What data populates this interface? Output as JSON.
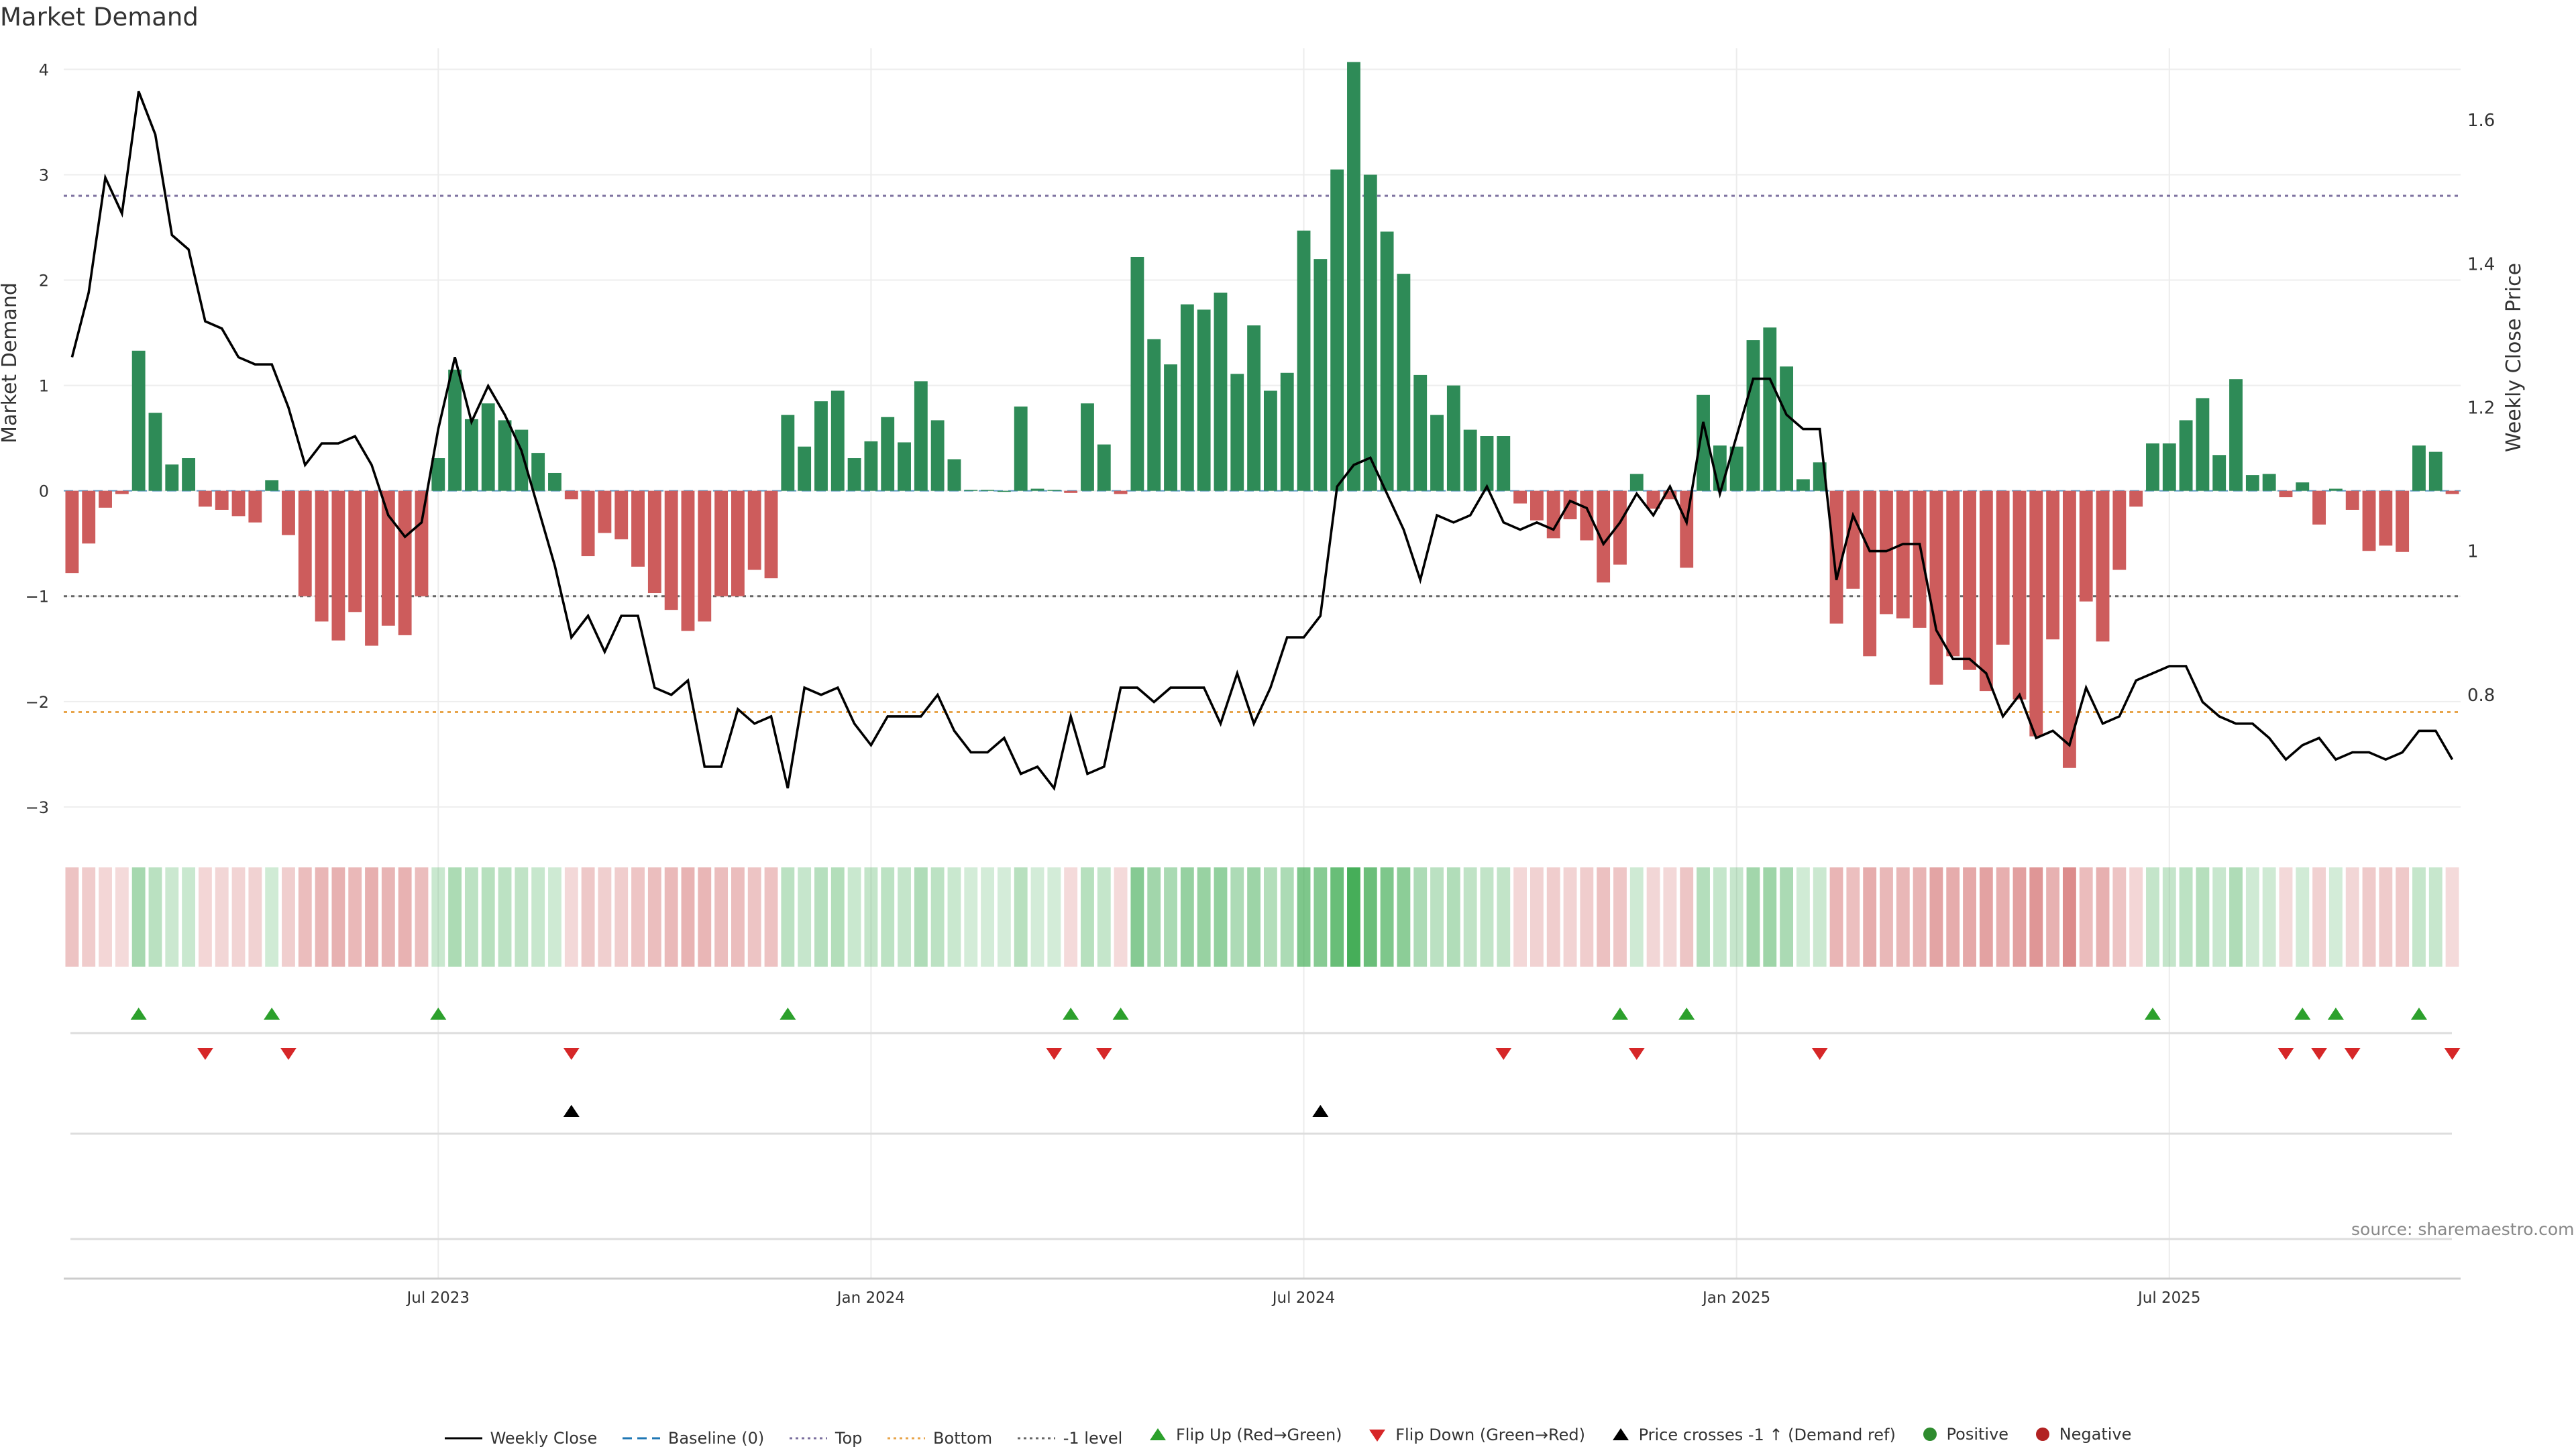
{
  "title": "Market Demand",
  "source": "source: sharemaestro.com",
  "legend": {
    "weekly_close": "Weekly Close",
    "baseline": "Baseline (0)",
    "top": "Top",
    "bottom": "Bottom",
    "minus1": "-1 level",
    "flip_up": "Flip Up (Red→Green)",
    "flip_down": "Flip Down (Green→Red)",
    "price_cross": "Price crosses -1 ↑ (Demand ref)",
    "positive": "Positive",
    "negative": "Negative"
  },
  "colors": {
    "positive": "#2e8b57",
    "negative": "#cd5c5c",
    "line": "#000000",
    "top": "#7b6f9e",
    "bottom": "#e8a54b",
    "minus1": "#666666",
    "flip_up": "#2ca02c",
    "flip_down": "#d62728"
  },
  "chart_data": {
    "type": "bar+line",
    "title": "Market Demand",
    "ylabel": "Market Demand",
    "y2label": "Weekly Close Price",
    "ylim": [
      -3.3,
      4.2
    ],
    "y2lim": [
      0.6,
      1.7
    ],
    "yticks": [
      -3,
      -2,
      -1,
      0,
      1,
      2,
      3,
      4
    ],
    "ytick_labels": [
      "−3",
      "−2",
      "−1",
      "0",
      "1",
      "2",
      "3",
      "4"
    ],
    "y2ticks": [
      0.8,
      1.0,
      1.2,
      1.4,
      1.6
    ],
    "y2tick_labels": [
      "0.8",
      "1",
      "1.2",
      "1.4",
      "1.6"
    ],
    "xticks": [
      22,
      48,
      74,
      100,
      126
    ],
    "xtick_labels": [
      "Jul 2023",
      "Jan 2024",
      "Jul 2024",
      "Jan 2025",
      "Jul 2025"
    ],
    "levels": {
      "top": 2.8,
      "bottom": -2.1,
      "minus1": -1.0,
      "baseline": 0
    },
    "demand": [
      -0.78,
      -0.5,
      -0.16,
      -0.03,
      1.33,
      0.74,
      0.25,
      0.31,
      -0.15,
      -0.18,
      -0.24,
      -0.3,
      0.1,
      -0.42,
      -1.0,
      -1.24,
      -1.42,
      -1.15,
      -1.47,
      -1.28,
      -1.37,
      -1.0,
      0.31,
      1.15,
      0.68,
      0.83,
      0.67,
      0.58,
      0.36,
      0.17,
      -0.08,
      -0.62,
      -0.4,
      -0.46,
      -0.72,
      -0.97,
      -1.13,
      -1.33,
      -1.24,
      -1.0,
      -1.0,
      -0.75,
      -0.83,
      0.72,
      0.42,
      0.85,
      0.95,
      0.31,
      0.47,
      0.7,
      0.46,
      1.04,
      0.67,
      0.3,
      0.01,
      0.01,
      0.0,
      0.8,
      0.02,
      0.01,
      -0.02,
      0.83,
      0.44,
      -0.03,
      2.22,
      1.44,
      1.2,
      1.77,
      1.72,
      1.88,
      1.11,
      1.57,
      0.95,
      1.12,
      2.47,
      2.2,
      3.05,
      4.07,
      3.0,
      2.46,
      2.06,
      1.1,
      0.72,
      1.0,
      0.58,
      0.52,
      0.52,
      -0.12,
      -0.28,
      -0.45,
      -0.27,
      -0.47,
      -0.87,
      -0.7,
      0.16,
      -0.17,
      -0.08,
      -0.73,
      0.91,
      0.43,
      0.42,
      1.43,
      1.55,
      1.18,
      0.11,
      0.27,
      -1.26,
      -0.93,
      -1.57,
      -1.17,
      -1.21,
      -1.3,
      -1.84,
      -1.57,
      -1.7,
      -1.9,
      -1.46,
      -1.98,
      -2.33,
      -1.41,
      -2.63,
      -1.05,
      -1.43,
      -0.75,
      -0.15,
      0.45,
      0.45,
      0.67,
      0.88,
      0.34,
      1.06,
      0.15,
      0.16,
      -0.06,
      0.08,
      -0.32,
      0.02,
      -0.18,
      -0.57,
      -0.52,
      -0.58,
      0.43,
      0.37,
      -0.03
    ],
    "close": [
      1.27,
      1.36,
      1.52,
      1.47,
      1.64,
      1.58,
      1.44,
      1.42,
      1.32,
      1.31,
      1.27,
      1.26,
      1.26,
      1.2,
      1.12,
      1.15,
      1.15,
      1.16,
      1.12,
      1.05,
      1.02,
      1.04,
      1.17,
      1.27,
      1.18,
      1.23,
      1.19,
      1.14,
      1.06,
      0.98,
      0.88,
      0.91,
      0.86,
      0.91,
      0.91,
      0.81,
      0.8,
      0.82,
      0.7,
      0.7,
      0.78,
      0.76,
      0.77,
      0.67,
      0.81,
      0.8,
      0.81,
      0.76,
      0.73,
      0.77,
      0.77,
      0.77,
      0.8,
      0.75,
      0.72,
      0.72,
      0.74,
      0.69,
      0.7,
      0.67,
      0.77,
      0.69,
      0.7,
      0.81,
      0.81,
      0.79,
      0.81,
      0.81,
      0.81,
      0.76,
      0.83,
      0.76,
      0.81,
      0.88,
      0.88,
      0.91,
      1.09,
      1.12,
      1.13,
      1.08,
      1.03,
      0.96,
      1.05,
      1.04,
      1.05,
      1.09,
      1.04,
      1.03,
      1.04,
      1.03,
      1.07,
      1.06,
      1.01,
      1.04,
      1.08,
      1.05,
      1.09,
      1.04,
      1.18,
      1.08,
      1.16,
      1.24,
      1.24,
      1.19,
      1.17,
      1.17,
      0.96,
      1.05,
      1.0,
      1.0,
      1.01,
      1.01,
      0.89,
      0.85,
      0.85,
      0.83,
      0.77,
      0.8,
      0.74,
      0.75,
      0.73,
      0.81,
      0.76,
      0.77,
      0.82,
      0.83,
      0.84,
      0.84,
      0.79,
      0.77,
      0.76,
      0.76,
      0.74,
      0.71,
      0.73,
      0.74,
      0.71,
      0.72,
      0.72,
      0.71,
      0.72,
      0.75,
      0.75,
      0.71
    ],
    "flip_up_idx": [
      4,
      12,
      22,
      43,
      60,
      63,
      93,
      97,
      125,
      134,
      136,
      141
    ],
    "flip_down_idx": [
      8,
      13,
      30,
      59,
      62,
      86,
      94,
      105,
      133,
      135,
      137,
      143
    ],
    "price_cross_idx": [
      30,
      75
    ]
  }
}
